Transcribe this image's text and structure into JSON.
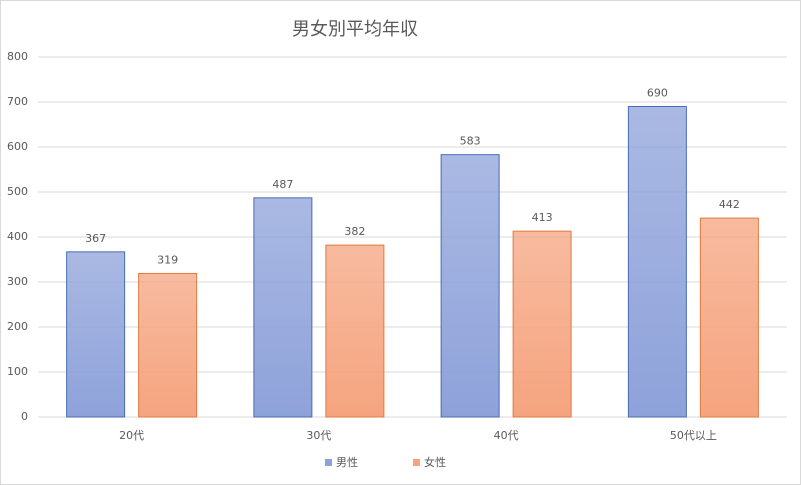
{
  "chart_data": {
    "type": "bar",
    "title": "男女別平均年収",
    "categories": [
      "20代",
      "30代",
      "40代",
      "50代以上"
    ],
    "series": [
      {
        "name": "男性",
        "color": "#8ea2da",
        "values": [
          367,
          487,
          583,
          690
        ]
      },
      {
        "name": "女性",
        "color": "#f5a47f",
        "values": [
          319,
          382,
          413,
          442
        ]
      }
    ],
    "ylim": [
      0,
      800
    ],
    "yticks": [
      0,
      100,
      200,
      300,
      400,
      500,
      600,
      700,
      800
    ],
    "grid": true,
    "legend": "bottom"
  }
}
